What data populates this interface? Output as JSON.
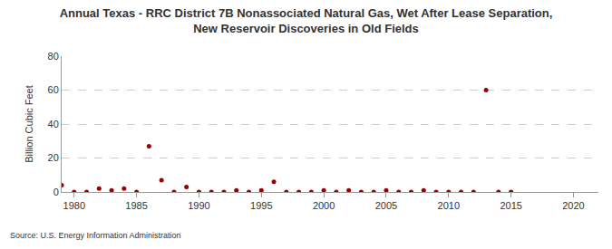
{
  "chart_data": {
    "type": "scatter",
    "title": "Annual Texas - RRC District 7B Nonassociated Natural Gas, Wet After Lease Separation, New Reservoir Discoveries in Old Fields",
    "y_label": "Billion Cubic Feet",
    "annotations": [
      "Source: U.S. Energy Information Administration"
    ],
    "x": [
      1979,
      1980,
      1981,
      1982,
      1983,
      1984,
      1985,
      1986,
      1987,
      1988,
      1989,
      1990,
      1991,
      1992,
      1993,
      1994,
      1995,
      1996,
      1997,
      1998,
      1999,
      2000,
      2001,
      2002,
      2003,
      2004,
      2005,
      2006,
      2007,
      2008,
      2009,
      2010,
      2011,
      2012,
      2013,
      2014,
      2015
    ],
    "values": [
      4,
      0,
      0,
      2,
      1,
      2,
      0,
      27,
      7,
      0,
      3,
      0,
      0,
      0,
      1,
      0,
      1,
      6,
      0,
      0,
      0,
      1,
      0,
      1,
      0,
      0,
      1,
      0,
      0,
      1,
      0,
      0,
      0,
      0,
      60,
      0,
      0
    ],
    "color": "#990000",
    "marker": "circle",
    "xlim": [
      1979,
      2022
    ],
    "xticks": [
      1980,
      1985,
      1990,
      1995,
      2000,
      2005,
      2010,
      2015,
      2020
    ],
    "ylim": [
      0,
      80
    ],
    "yticks": [
      0,
      20,
      40,
      60,
      80
    ],
    "grid": true
  }
}
